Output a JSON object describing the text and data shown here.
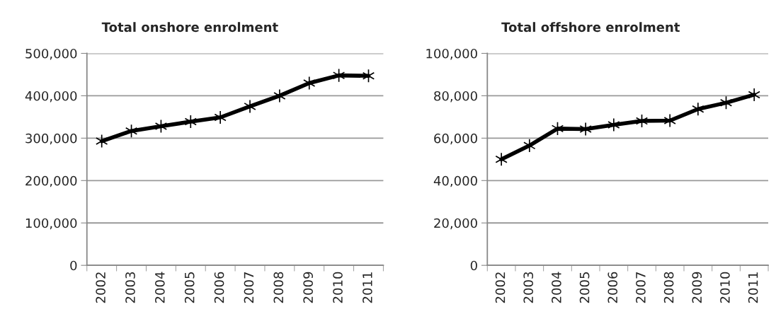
{
  "chart_data": [
    {
      "type": "line",
      "title": "Total onshore enrolment",
      "categories": [
        "2002",
        "2003",
        "2004",
        "2005",
        "2006",
        "2007",
        "2008",
        "2009",
        "2010",
        "2011"
      ],
      "series": [
        {
          "color": "#000000",
          "values": [
            293000,
            317000,
            328000,
            339000,
            349000,
            375000,
            400000,
            430000,
            448000,
            447000
          ]
        }
      ],
      "ylim": [
        0,
        500000
      ],
      "yticks": [
        {
          "value": 0,
          "label": "0"
        },
        {
          "value": 100000,
          "label": "100,000"
        },
        {
          "value": 200000,
          "label": "200,000"
        },
        {
          "value": 300000,
          "label": "300,000"
        },
        {
          "value": 400000,
          "label": "400,000"
        },
        {
          "value": 500000,
          "label": "500,000"
        }
      ],
      "grid": "y",
      "marker": "cross",
      "line_style": "solid"
    },
    {
      "type": "line",
      "title": "Total offshore enrolment",
      "categories": [
        "2002",
        "2003",
        "2004",
        "2005",
        "2006",
        "2007",
        "2008",
        "2009",
        "2010",
        "2011"
      ],
      "series": [
        {
          "color": "#000000",
          "values": [
            50000,
            56500,
            64500,
            64300,
            66300,
            68100,
            68300,
            73700,
            76700,
            80500
          ]
        }
      ],
      "ylim": [
        0,
        100000
      ],
      "yticks": [
        {
          "value": 0,
          "label": "0"
        },
        {
          "value": 20000,
          "label": "20,000"
        },
        {
          "value": 40000,
          "label": "40,000"
        },
        {
          "value": 60000,
          "label": "60,000"
        },
        {
          "value": 80000,
          "label": "80,000"
        },
        {
          "value": 100000,
          "label": "100,000"
        }
      ],
      "grid": "y",
      "marker": "cross",
      "line_style": "solid"
    }
  ]
}
